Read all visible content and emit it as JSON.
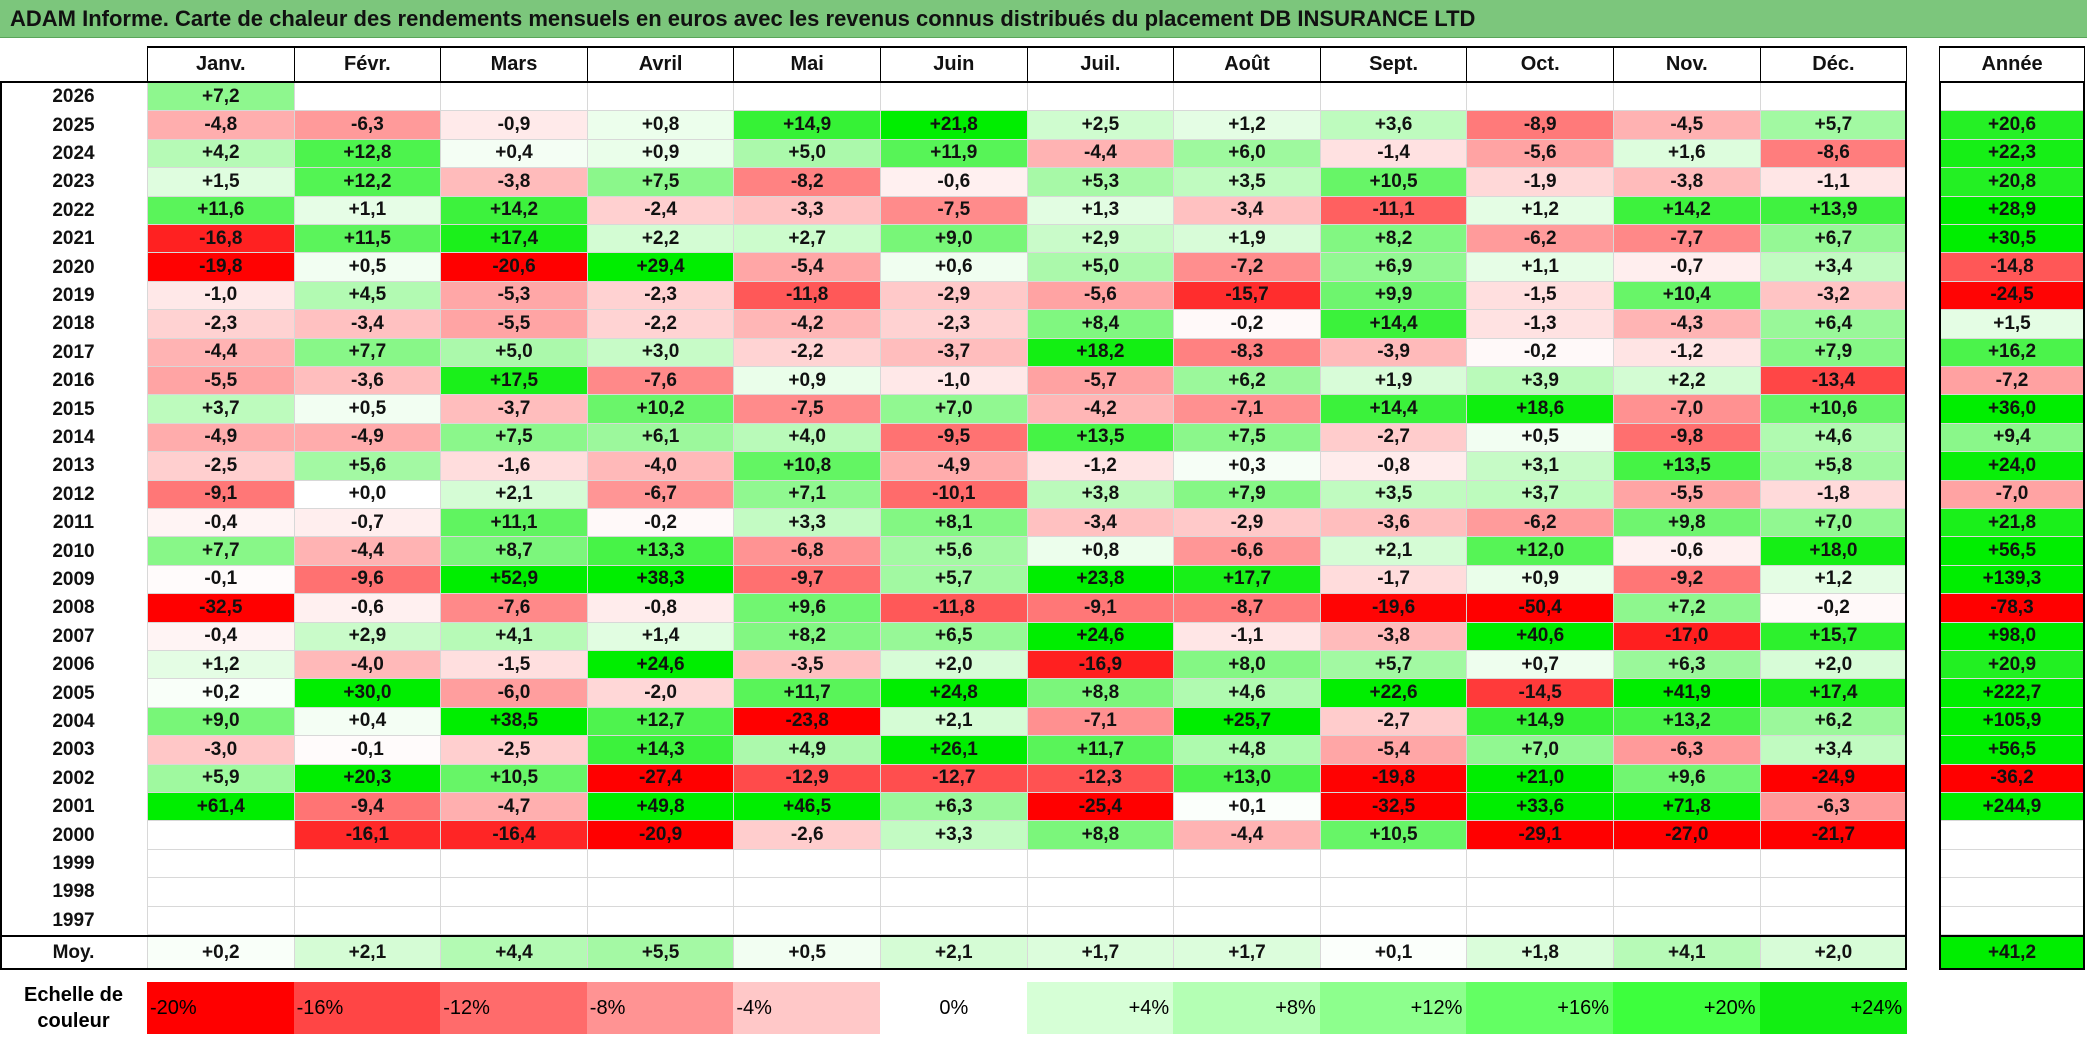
{
  "title": "ADAM Informe. Carte de chaleur des rendements mensuels en euros avec les revenus connus distribués du placement DB INSURANCE LTD",
  "chart_data": {
    "type": "heatmap",
    "title": "ADAM Informe. Carte de chaleur des rendements mensuels en euros avec les revenus connus distribués du placement DB INSURANCE LTD",
    "columns": [
      "Janv.",
      "Févr.",
      "Mars",
      "Avril",
      "Mai",
      "Juin",
      "Juil.",
      "Août",
      "Sept.",
      "Oct.",
      "Nov.",
      "Déc."
    ],
    "year_column": "Année",
    "rows": [
      {
        "year": "2026",
        "values": [
          "+7,2",
          "",
          "",
          "",
          "",
          "",
          "",
          "",
          "",
          "",
          "",
          ""
        ],
        "annual": ""
      },
      {
        "year": "2025",
        "values": [
          "-4,8",
          "-6,3",
          "-0,9",
          "+0,8",
          "+14,9",
          "+21,8",
          "+2,5",
          "+1,2",
          "+3,6",
          "-8,9",
          "-4,5",
          "+5,7"
        ],
        "annual": "+20,6"
      },
      {
        "year": "2024",
        "values": [
          "+4,2",
          "+12,8",
          "+0,4",
          "+0,9",
          "+5,0",
          "+11,9",
          "-4,4",
          "+6,0",
          "-1,4",
          "-5,6",
          "+1,6",
          "-8,6"
        ],
        "annual": "+22,3"
      },
      {
        "year": "2023",
        "values": [
          "+1,5",
          "+12,2",
          "-3,8",
          "+7,5",
          "-8,2",
          "-0,6",
          "+5,3",
          "+3,5",
          "+10,5",
          "-1,9",
          "-3,8",
          "-1,1"
        ],
        "annual": "+20,8"
      },
      {
        "year": "2022",
        "values": [
          "+11,6",
          "+1,1",
          "+14,2",
          "-2,4",
          "-3,3",
          "-7,5",
          "+1,3",
          "-3,4",
          "-11,1",
          "+1,2",
          "+14,2",
          "+13,9"
        ],
        "annual": "+28,9"
      },
      {
        "year": "2021",
        "values": [
          "-16,8",
          "+11,5",
          "+17,4",
          "+2,2",
          "+2,7",
          "+9,0",
          "+2,9",
          "+1,9",
          "+8,2",
          "-6,2",
          "-7,7",
          "+6,7"
        ],
        "annual": "+30,5"
      },
      {
        "year": "2020",
        "values": [
          "-19,8",
          "+0,5",
          "-20,6",
          "+29,4",
          "-5,4",
          "+0,6",
          "+5,0",
          "-7,2",
          "+6,9",
          "+1,1",
          "-0,7",
          "+3,4"
        ],
        "annual": "-14,8"
      },
      {
        "year": "2019",
        "values": [
          "-1,0",
          "+4,5",
          "-5,3",
          "-2,3",
          "-11,8",
          "-2,9",
          "-5,6",
          "-15,7",
          "+9,9",
          "-1,5",
          "+10,4",
          "-3,2"
        ],
        "annual": "-24,5"
      },
      {
        "year": "2018",
        "values": [
          "-2,3",
          "-3,4",
          "-5,5",
          "-2,2",
          "-4,2",
          "-2,3",
          "+8,4",
          "-0,2",
          "+14,4",
          "-1,3",
          "-4,3",
          "+6,4"
        ],
        "annual": "+1,5"
      },
      {
        "year": "2017",
        "values": [
          "-4,4",
          "+7,7",
          "+5,0",
          "+3,0",
          "-2,2",
          "-3,7",
          "+18,2",
          "-8,3",
          "-3,9",
          "-0,2",
          "-1,2",
          "+7,9"
        ],
        "annual": "+16,2"
      },
      {
        "year": "2016",
        "values": [
          "-5,5",
          "-3,6",
          "+17,5",
          "-7,6",
          "+0,9",
          "-1,0",
          "-5,7",
          "+6,2",
          "+1,9",
          "+3,9",
          "+2,2",
          "-13,4"
        ],
        "annual": "-7,2"
      },
      {
        "year": "2015",
        "values": [
          "+3,7",
          "+0,5",
          "-3,7",
          "+10,2",
          "-7,5",
          "+7,0",
          "-4,2",
          "-7,1",
          "+14,4",
          "+18,6",
          "-7,0",
          "+10,6"
        ],
        "annual": "+36,0"
      },
      {
        "year": "2014",
        "values": [
          "-4,9",
          "-4,9",
          "+7,5",
          "+6,1",
          "+4,0",
          "-9,5",
          "+13,5",
          "+7,5",
          "-2,7",
          "+0,5",
          "-9,8",
          "+4,6"
        ],
        "annual": "+9,4"
      },
      {
        "year": "2013",
        "values": [
          "-2,5",
          "+5,6",
          "-1,6",
          "-4,0",
          "+10,8",
          "-4,9",
          "-1,2",
          "+0,3",
          "-0,8",
          "+3,1",
          "+13,5",
          "+5,8"
        ],
        "annual": "+24,0"
      },
      {
        "year": "2012",
        "values": [
          "-9,1",
          "+0,0",
          "+2,1",
          "-6,7",
          "+7,1",
          "-10,1",
          "+3,8",
          "+7,9",
          "+3,5",
          "+3,7",
          "-5,5",
          "-1,8"
        ],
        "annual": "-7,0"
      },
      {
        "year": "2011",
        "values": [
          "-0,4",
          "-0,7",
          "+11,1",
          "-0,2",
          "+3,3",
          "+8,1",
          "-3,4",
          "-2,9",
          "-3,6",
          "-6,2",
          "+9,8",
          "+7,0"
        ],
        "annual": "+21,8"
      },
      {
        "year": "2010",
        "values": [
          "+7,7",
          "-4,4",
          "+8,7",
          "+13,3",
          "-6,8",
          "+5,6",
          "+0,8",
          "-6,6",
          "+2,1",
          "+12,0",
          "-0,6",
          "+18,0"
        ],
        "annual": "+56,5"
      },
      {
        "year": "2009",
        "values": [
          "-0,1",
          "-9,6",
          "+52,9",
          "+38,3",
          "-9,7",
          "+5,7",
          "+23,8",
          "+17,7",
          "-1,7",
          "+0,9",
          "-9,2",
          "+1,2"
        ],
        "annual": "+139,3"
      },
      {
        "year": "2008",
        "values": [
          "-32,5",
          "-0,6",
          "-7,6",
          "-0,8",
          "+9,6",
          "-11,8",
          "-9,1",
          "-8,7",
          "-19,6",
          "-50,4",
          "+7,2",
          "-0,2"
        ],
        "annual": "-78,3"
      },
      {
        "year": "2007",
        "values": [
          "-0,4",
          "+2,9",
          "+4,1",
          "+1,4",
          "+8,2",
          "+6,5",
          "+24,6",
          "-1,1",
          "-3,8",
          "+40,6",
          "-17,0",
          "+15,7"
        ],
        "annual": "+98,0"
      },
      {
        "year": "2006",
        "values": [
          "+1,2",
          "-4,0",
          "-1,5",
          "+24,6",
          "-3,5",
          "+2,0",
          "-16,9",
          "+8,0",
          "+5,7",
          "+0,7",
          "+6,3",
          "+2,0"
        ],
        "annual": "+20,9"
      },
      {
        "year": "2005",
        "values": [
          "+0,2",
          "+30,0",
          "-6,0",
          "-2,0",
          "+11,7",
          "+24,8",
          "+8,8",
          "+4,6",
          "+22,6",
          "-14,5",
          "+41,9",
          "+17,4"
        ],
        "annual": "+222,7"
      },
      {
        "year": "2004",
        "values": [
          "+9,0",
          "+0,4",
          "+38,5",
          "+12,7",
          "-23,8",
          "+2,1",
          "-7,1",
          "+25,7",
          "-2,7",
          "+14,9",
          "+13,2",
          "+6,2"
        ],
        "annual": "+105,9"
      },
      {
        "year": "2003",
        "values": [
          "-3,0",
          "-0,1",
          "-2,5",
          "+14,3",
          "+4,9",
          "+26,1",
          "+11,7",
          "+4,8",
          "-5,4",
          "+7,0",
          "-6,3",
          "+3,4"
        ],
        "annual": "+56,5"
      },
      {
        "year": "2002",
        "values": [
          "+5,9",
          "+20,3",
          "+10,5",
          "-27,4",
          "-12,9",
          "-12,7",
          "-12,3",
          "+13,0",
          "-19,8",
          "+21,0",
          "+9,6",
          "-24,9"
        ],
        "annual": "-36,2"
      },
      {
        "year": "2001",
        "values": [
          "+61,4",
          "-9,4",
          "-4,7",
          "+49,8",
          "+46,5",
          "+6,3",
          "-25,4",
          "+0,1",
          "-32,5",
          "+33,6",
          "+71,8",
          "-6,3"
        ],
        "annual": "+244,9"
      },
      {
        "year": "2000",
        "values": [
          "",
          "-16,1",
          "-16,4",
          "-20,9",
          "-2,6",
          "+3,3",
          "+8,8",
          "-4,4",
          "+10,5",
          "-29,1",
          "-27,0",
          "-21,7"
        ],
        "annual": ""
      },
      {
        "year": "1999",
        "values": [
          "",
          "",
          "",
          "",
          "",
          "",
          "",
          "",
          "",
          "",
          "",
          ""
        ],
        "annual": ""
      },
      {
        "year": "1998",
        "values": [
          "",
          "",
          "",
          "",
          "",
          "",
          "",
          "",
          "",
          "",
          "",
          ""
        ],
        "annual": ""
      },
      {
        "year": "1997",
        "values": [
          "",
          "",
          "",
          "",
          "",
          "",
          "",
          "",
          "",
          "",
          "",
          ""
        ],
        "annual": ""
      }
    ],
    "average": {
      "label": "Moy.",
      "values": [
        "+0,2",
        "+2,1",
        "+4,4",
        "+5,5",
        "+0,5",
        "+2,1",
        "+1,7",
        "+1,7",
        "+0,1",
        "+1,8",
        "+4,1",
        "+2,0"
      ],
      "annual": "+41,2"
    },
    "color_scale": {
      "label": "Echelle de couleur",
      "steps": [
        "-20%",
        "-16%",
        "-12%",
        "-8%",
        "-4%",
        "0%",
        "+4%",
        "+8%",
        "+12%",
        "+16%",
        "+20%",
        "+24%"
      ],
      "colors": [
        "#ff0000",
        "#ff4545",
        "#ff6b6b",
        "#ff9393",
        "#ffc8c8",
        "#ffffff",
        "#d6ffd6",
        "#b4ffb4",
        "#8dff8d",
        "#63ff63",
        "#3dff3d",
        "#12ef12"
      ]
    }
  }
}
